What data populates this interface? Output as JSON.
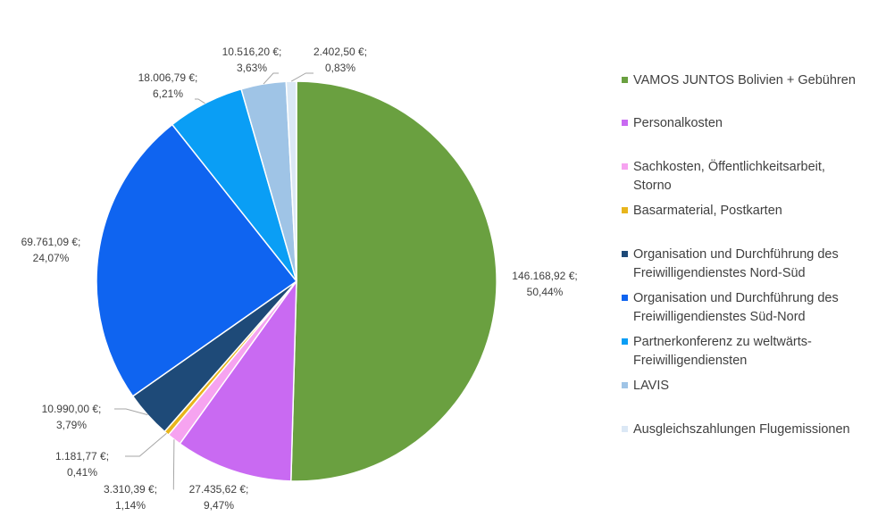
{
  "chart_data": {
    "type": "pie",
    "title": "",
    "slices": [
      {
        "name": "VAMOS JUNTOS Bolivien + Gebühren",
        "value": 146168.92,
        "percent": 50.44,
        "value_label": "146.168,92 €;",
        "percent_label": "50,44%",
        "color": "#6aa040"
      },
      {
        "name": "Personalkosten",
        "value": 27435.62,
        "percent": 9.47,
        "value_label": "27.435,62 €;",
        "percent_label": "9,47%",
        "color": "#c96af2"
      },
      {
        "name": "Sachkosten, Öffentlichkeitsarbeit, Storno",
        "value": 3310.39,
        "percent": 1.14,
        "value_label": "3.310,39 €;",
        "percent_label": "1,14%",
        "color": "#f6a3f0"
      },
      {
        "name": "Basarmaterial, Postkarten",
        "value": 1181.77,
        "percent": 0.41,
        "value_label": "1.181,77 €;",
        "percent_label": "0,41%",
        "color": "#e8b51c"
      },
      {
        "name": "Organisation und Durchführung des Freiwilligendienstes Nord-Süd",
        "value": 10990.0,
        "percent": 3.79,
        "value_label": "10.990,00 €;",
        "percent_label": "3,79%",
        "color": "#1e4a78"
      },
      {
        "name": "Organisation und Durchführung des Freiwilligendienstes Süd-Nord",
        "value": 69761.09,
        "percent": 24.07,
        "value_label": "69.761,09 €;",
        "percent_label": "24,07%",
        "color": "#0f64f0"
      },
      {
        "name": "Partnerkonferenz zu weltwärts-Freiwilligendiensten",
        "value": 18006.79,
        "percent": 6.21,
        "value_label": "18.006,79 €;",
        "percent_label": "6,21%",
        "color": "#0a9ef5"
      },
      {
        "name": "LAVIS",
        "value": 10516.2,
        "percent": 3.63,
        "value_label": "10.516,20 €;",
        "percent_label": "3,63%",
        "color": "#9fc4e6"
      },
      {
        "name": "Ausgleichszahlungen Flugemissionen",
        "value": 2402.5,
        "percent": 0.83,
        "value_label": "2.402,50 €;",
        "percent_label": "0,83%",
        "color": "#dbe8f5"
      }
    ],
    "legend": {
      "placement": "right",
      "entries": [
        {
          "line1": "VAMOS JUNTOS Bolivien + Gebühren",
          "line2": ""
        },
        {
          "line1": "Personalkosten",
          "line2": ""
        },
        {
          "line1": "Sachkosten, Öffentlichkeitsarbeit,",
          "line2": "Storno"
        },
        {
          "line1": "Basarmaterial, Postkarten",
          "line2": ""
        },
        {
          "line1": "Organisation und Durchführung des",
          "line2": "Freiwilligendienstes Nord-Süd"
        },
        {
          "line1": "Organisation und Durchführung des",
          "line2": "Freiwilligendienstes Süd-Nord"
        },
        {
          "line1": "Partnerkonferenz zu weltwärts-",
          "line2": "Freiwilligendiensten"
        },
        {
          "line1": "LAVIS",
          "line2": ""
        },
        {
          "line1": "Ausgleichszahlungen Flugemissionen",
          "line2": ""
        }
      ]
    }
  }
}
